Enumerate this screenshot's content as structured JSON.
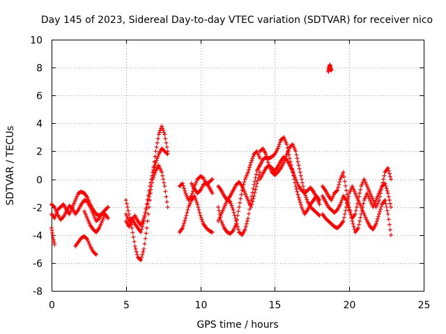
{
  "chart_data": {
    "type": "scatter",
    "title": "Day 145 of 2023, Sidereal Day-to-day VTEC variation (SDTVAR) for receiver nico",
    "xlabel": "GPS time / hours",
    "ylabel": "SDTVAR / TECUs",
    "xlim": [
      0,
      25
    ],
    "ylim": [
      -8,
      10
    ],
    "xticks": [
      0,
      5,
      10,
      15,
      20,
      25
    ],
    "yticks": [
      -8,
      -6,
      -4,
      -2,
      0,
      2,
      4,
      6,
      8,
      10
    ],
    "grid": true,
    "marker": "+",
    "color": "#ff0000",
    "series": [
      {
        "name": "t1",
        "x": [
          0.0,
          0.2,
          0.4,
          0.6,
          0.8,
          1.0,
          1.2,
          1.4,
          1.6,
          1.8,
          2.0,
          2.2,
          2.4,
          2.6,
          2.8,
          3.0,
          3.2,
          3.4,
          3.6,
          3.8
        ],
        "y": [
          -2.5,
          -2.8,
          -2.2,
          -2.0,
          -1.8,
          -2.2,
          -2.5,
          -2.0,
          -1.5,
          -1.0,
          -0.9,
          -1.0,
          -1.3,
          -1.8,
          -2.2,
          -2.5,
          -2.6,
          -2.5,
          -2.2,
          -2.0
        ]
      },
      {
        "name": "t2",
        "x": [
          0.0,
          0.2,
          0.4,
          0.6,
          0.8,
          1.0,
          1.2,
          1.4,
          1.6,
          1.8,
          2.0,
          2.2,
          2.4,
          2.6,
          2.8,
          3.0,
          3.2,
          3.4,
          3.6,
          3.8
        ],
        "y": [
          -1.8,
          -2.0,
          -2.5,
          -2.9,
          -2.7,
          -2.3,
          -1.9,
          -2.1,
          -2.5,
          -2.2,
          -1.8,
          -1.5,
          -1.6,
          -2.0,
          -2.5,
          -3.0,
          -2.8,
          -2.4,
          -2.5,
          -2.8
        ]
      },
      {
        "name": "t3",
        "x": [
          0.0,
          0.1,
          0.2
        ],
        "y": [
          -3.5,
          -4.2,
          -4.7
        ]
      },
      {
        "name": "t4",
        "x": [
          1.6,
          1.8,
          2.0,
          2.2,
          2.4,
          2.6,
          2.8,
          3.0
        ],
        "y": [
          -4.8,
          -4.5,
          -4.2,
          -4.1,
          -4.3,
          -4.8,
          -5.2,
          -5.4
        ]
      },
      {
        "name": "t5",
        "x": [
          2.2,
          2.4,
          2.6,
          2.8,
          3.0,
          3.2,
          3.4,
          3.6
        ],
        "y": [
          -2.3,
          -2.8,
          -3.3,
          -3.6,
          -3.8,
          -3.5,
          -3.0,
          -2.5
        ]
      },
      {
        "name": "t6",
        "x": [
          5.0,
          5.2,
          5.4,
          5.6,
          5.8,
          6.0,
          6.2,
          6.4,
          6.6,
          6.8,
          7.0,
          7.2,
          7.4,
          7.6,
          7.8
        ],
        "y": [
          -1.5,
          -2.5,
          -3.5,
          -4.8,
          -5.6,
          -5.8,
          -5.0,
          -3.5,
          -1.5,
          0.5,
          2.0,
          3.2,
          3.8,
          3.2,
          2.0
        ]
      },
      {
        "name": "t7",
        "x": [
          5.0,
          5.2,
          5.4,
          5.6,
          5.8,
          6.0,
          6.2,
          6.4,
          6.6,
          6.8,
          7.0,
          7.2,
          7.4,
          7.6,
          7.8
        ],
        "y": [
          -2.5,
          -3.0,
          -2.8,
          -3.2,
          -3.5,
          -3.8,
          -3.0,
          -1.8,
          -0.5,
          0.5,
          1.2,
          1.8,
          2.2,
          2.0,
          1.8
        ]
      },
      {
        "name": "t8",
        "x": [
          5.0,
          5.2,
          5.4,
          5.6,
          5.8,
          6.0,
          6.2,
          6.4,
          6.6,
          6.8,
          7.0,
          7.2,
          7.4,
          7.6,
          7.8
        ],
        "y": [
          -3.0,
          -3.4,
          -3.0,
          -2.6,
          -3.0,
          -3.3,
          -2.8,
          -2.0,
          -1.0,
          0.0,
          0.6,
          1.0,
          0.5,
          -0.5,
          -2.0
        ]
      },
      {
        "name": "t9",
        "x": [
          8.6,
          8.8,
          9.0,
          9.2,
          9.4,
          9.6,
          9.8,
          10.0,
          10.2,
          10.4,
          10.6,
          10.8
        ],
        "y": [
          -0.5,
          -0.3,
          -1.0,
          -1.5,
          -1.2,
          -0.5,
          0.0,
          0.2,
          0.1,
          -0.4,
          -0.2,
          0.0
        ]
      },
      {
        "name": "t10",
        "x": [
          8.6,
          8.8,
          9.0,
          9.2,
          9.4,
          9.6,
          9.8,
          10.0,
          10.2,
          10.4,
          10.6,
          10.8
        ],
        "y": [
          -3.8,
          -3.5,
          -2.8,
          -2.0,
          -1.5,
          -1.2,
          -1.8,
          -2.6,
          -3.2,
          -3.5,
          -3.7,
          -3.8
        ]
      },
      {
        "name": "t11",
        "x": [
          9.4,
          9.6,
          9.8,
          10.0,
          10.2,
          10.4,
          10.6,
          10.8
        ],
        "y": [
          -0.3,
          -0.7,
          -1.0,
          -0.8,
          -0.4,
          -0.2,
          -0.6,
          -1.0
        ]
      },
      {
        "name": "t12",
        "x": [
          11.2,
          11.4,
          11.6,
          11.8,
          12.0,
          12.2,
          12.4,
          12.6,
          12.8,
          13.0,
          13.2,
          13.4,
          13.6,
          13.8,
          14.0
        ],
        "y": [
          -2.0,
          -3.0,
          -3.5,
          -3.8,
          -3.9,
          -3.7,
          -3.2,
          -2.0,
          -0.8,
          0.0,
          0.5,
          1.2,
          1.8,
          2.0,
          1.5
        ]
      },
      {
        "name": "t13",
        "x": [
          11.2,
          11.4,
          11.6,
          11.8,
          12.0,
          12.2,
          12.4,
          12.6,
          12.8,
          13.0,
          13.2,
          13.4,
          13.6,
          13.8,
          14.0
        ],
        "y": [
          -0.5,
          -0.8,
          -1.2,
          -1.5,
          -1.2,
          -0.8,
          -0.4,
          -0.2,
          -0.5,
          -1.0,
          -1.5,
          -2.0,
          -1.2,
          -0.3,
          0.5
        ]
      },
      {
        "name": "t14",
        "x": [
          11.2,
          11.4,
          11.6,
          11.8,
          12.0,
          12.2,
          12.4,
          12.6,
          12.8,
          13.0,
          13.2,
          13.4,
          13.6,
          13.8,
          14.0
        ],
        "y": [
          -3.0,
          -2.5,
          -2.0,
          -1.5,
          -1.6,
          -2.2,
          -3.0,
          -3.8,
          -4.0,
          -3.6,
          -2.8,
          -1.5,
          -0.4,
          0.6,
          1.0
        ]
      },
      {
        "name": "t15",
        "x": [
          14.0,
          14.2,
          14.4,
          14.6,
          14.8,
          15.0,
          15.2,
          15.4,
          15.6,
          15.8,
          16.0,
          16.2,
          16.4,
          16.6,
          16.8,
          17.0,
          17.2,
          17.4,
          17.6,
          17.8,
          18.0
        ],
        "y": [
          2.0,
          2.2,
          1.8,
          1.0,
          0.5,
          0.3,
          0.5,
          0.8,
          1.2,
          1.8,
          2.3,
          2.5,
          2.0,
          1.0,
          0.0,
          -1.0,
          -1.6,
          -2.0,
          -2.2,
          -2.4,
          -2.6
        ]
      },
      {
        "name": "t16",
        "x": [
          14.0,
          14.2,
          14.4,
          14.6,
          14.8,
          15.0,
          15.2,
          15.4,
          15.6,
          15.8,
          16.0,
          16.2,
          16.4,
          16.6,
          16.8,
          17.0,
          17.2,
          17.4,
          17.6,
          17.8,
          18.0
        ],
        "y": [
          1.0,
          1.4,
          1.6,
          1.5,
          1.6,
          1.8,
          2.2,
          2.8,
          3.0,
          2.5,
          1.5,
          0.5,
          -0.5,
          -1.3,
          -2.0,
          -2.5,
          -2.2,
          -1.8,
          -1.5,
          -1.2,
          -1.5
        ]
      },
      {
        "name": "t17",
        "x": [
          14.0,
          14.2,
          14.4,
          14.6,
          14.8,
          15.0,
          15.2,
          15.4,
          15.6,
          15.8,
          16.0,
          16.2,
          16.4,
          16.6,
          16.8,
          17.0,
          17.2,
          17.4,
          17.6,
          17.8,
          18.0
        ],
        "y": [
          0.0,
          0.4,
          0.8,
          1.0,
          0.8,
          0.6,
          0.9,
          1.3,
          1.6,
          1.4,
          1.0,
          0.6,
          0.0,
          -0.5,
          -0.8,
          -1.0,
          -0.8,
          -0.6,
          -0.9,
          -1.3,
          -1.8
        ]
      },
      {
        "name": "t18",
        "x": [
          18.6,
          18.65,
          18.7,
          18.75,
          18.8
        ],
        "y": [
          7.7,
          8.0,
          8.2,
          7.9,
          7.8
        ]
      },
      {
        "name": "t19",
        "x": [
          18.2,
          18.4,
          18.6,
          18.8,
          19.0,
          19.2,
          19.4,
          19.6,
          19.8,
          20.0,
          20.2,
          20.4,
          20.6,
          20.8,
          21.0,
          21.2,
          21.4,
          21.6,
          21.8,
          22.0,
          22.2,
          22.4,
          22.6,
          22.8
        ],
        "y": [
          -2.5,
          -2.8,
          -3.0,
          -3.2,
          -3.4,
          -3.5,
          -3.3,
          -3.0,
          -2.0,
          -1.0,
          -0.5,
          -1.0,
          -1.5,
          -2.0,
          -2.5,
          -3.0,
          -3.4,
          -3.6,
          -3.2,
          -2.5,
          -1.8,
          -1.5,
          -2.5,
          -4.0
        ]
      },
      {
        "name": "t20",
        "x": [
          18.2,
          18.4,
          18.6,
          18.8,
          19.0,
          19.2,
          19.4,
          19.6,
          19.8,
          20.0,
          20.2,
          20.4,
          20.6,
          20.8,
          21.0,
          21.2,
          21.4,
          21.6,
          21.8,
          22.0,
          22.2,
          22.4,
          22.6,
          22.8
        ],
        "y": [
          -0.5,
          -0.8,
          -1.2,
          -1.5,
          -1.0,
          -0.8,
          0.0,
          0.5,
          -0.8,
          -2.0,
          -3.0,
          -3.8,
          -3.5,
          -2.5,
          -1.5,
          -1.0,
          -1.5,
          -2.0,
          -1.5,
          -1.0,
          -0.5,
          -0.3,
          -1.0,
          -2.0
        ]
      },
      {
        "name": "t21",
        "x": [
          18.2,
          18.4,
          18.6,
          18.8,
          19.0,
          19.2,
          19.4,
          19.6,
          19.8,
          20.0,
          20.2,
          20.4,
          20.6,
          20.8,
          21.0,
          21.2,
          21.4,
          21.6,
          21.8,
          22.0,
          22.2,
          22.4,
          22.6,
          22.8
        ],
        "y": [
          -1.2,
          -1.6,
          -2.0,
          -2.2,
          -2.4,
          -2.2,
          -1.8,
          -1.2,
          -1.5,
          -2.2,
          -2.8,
          -2.5,
          -1.5,
          -0.5,
          0.0,
          -0.5,
          -1.0,
          -1.5,
          -2.0,
          -1.5,
          -0.5,
          0.5,
          0.8,
          0.0
        ]
      }
    ]
  }
}
